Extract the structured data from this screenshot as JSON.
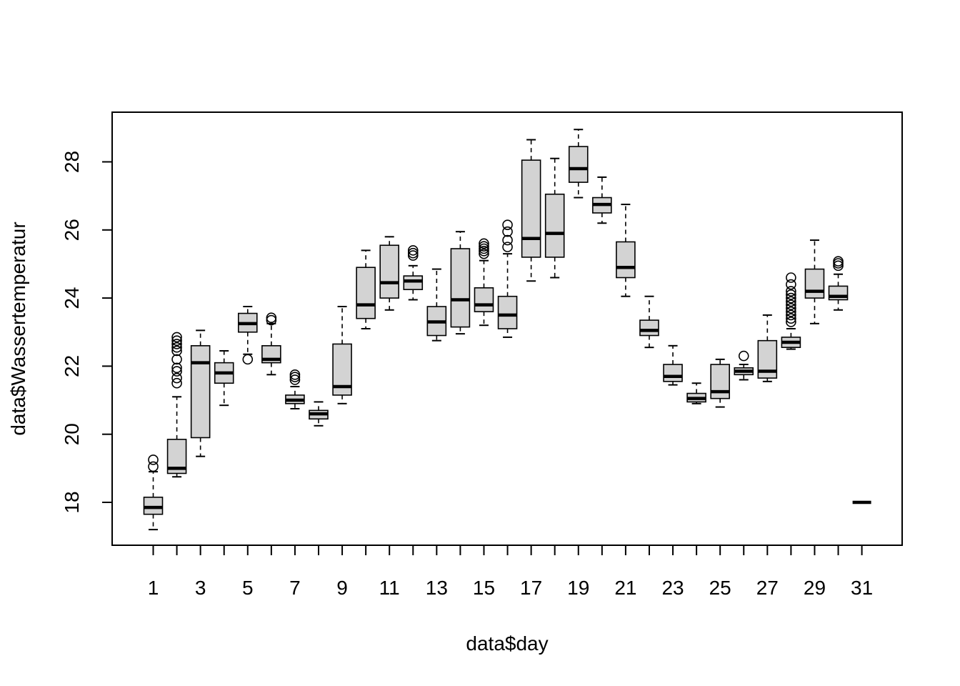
{
  "chart_data": {
    "type": "boxplot",
    "title": "",
    "xlabel": "data$day",
    "ylabel": "data$Wassertemperatur",
    "ylim": [
      17.0,
      29.3
    ],
    "y_ticks": [
      18,
      20,
      22,
      24,
      26,
      28
    ],
    "x_tick_labels_shown": [
      1,
      3,
      5,
      7,
      9,
      11,
      13,
      15,
      17,
      19,
      21,
      23,
      25,
      27,
      29,
      31
    ],
    "box_fill": "#d3d3d3",
    "grid": false,
    "legend": "none",
    "boxes": [
      {
        "day": 1,
        "whisker_low": 17.2,
        "q1": 17.65,
        "median": 17.85,
        "q3": 18.15,
        "whisker_high": 18.9,
        "outliers": [
          19.05,
          19.25
        ]
      },
      {
        "day": 2,
        "whisker_low": 18.75,
        "q1": 18.85,
        "median": 19.0,
        "q3": 19.85,
        "whisker_high": 21.1,
        "outliers": [
          21.5,
          21.65,
          21.85,
          21.95,
          22.2,
          22.45,
          22.55,
          22.65,
          22.75,
          22.85
        ]
      },
      {
        "day": 3,
        "whisker_low": 19.35,
        "q1": 19.9,
        "median": 22.1,
        "q3": 22.6,
        "whisker_high": 23.05,
        "outliers": []
      },
      {
        "day": 4,
        "whisker_low": 20.85,
        "q1": 21.5,
        "median": 21.8,
        "q3": 22.1,
        "whisker_high": 22.45,
        "outliers": []
      },
      {
        "day": 5,
        "whisker_low": 22.35,
        "q1": 23.0,
        "median": 23.25,
        "q3": 23.55,
        "whisker_high": 23.75,
        "outliers": [
          22.2
        ]
      },
      {
        "day": 6,
        "whisker_low": 21.75,
        "q1": 22.1,
        "median": 22.2,
        "q3": 22.6,
        "whisker_high": 23.25,
        "outliers": [
          23.35,
          23.42
        ]
      },
      {
        "day": 7,
        "whisker_low": 20.75,
        "q1": 20.9,
        "median": 21.0,
        "q3": 21.15,
        "whisker_high": 21.4,
        "outliers": [
          21.6,
          21.68,
          21.75
        ]
      },
      {
        "day": 8,
        "whisker_low": 20.25,
        "q1": 20.45,
        "median": 20.6,
        "q3": 20.7,
        "whisker_high": 20.95,
        "outliers": []
      },
      {
        "day": 9,
        "whisker_low": 20.9,
        "q1": 21.15,
        "median": 21.4,
        "q3": 22.65,
        "whisker_high": 23.75,
        "outliers": []
      },
      {
        "day": 10,
        "whisker_low": 23.1,
        "q1": 23.4,
        "median": 23.8,
        "q3": 24.9,
        "whisker_high": 25.4,
        "outliers": []
      },
      {
        "day": 11,
        "whisker_low": 23.65,
        "q1": 24.0,
        "median": 24.45,
        "q3": 25.55,
        "whisker_high": 25.8,
        "outliers": []
      },
      {
        "day": 12,
        "whisker_low": 23.95,
        "q1": 24.25,
        "median": 24.5,
        "q3": 24.65,
        "whisker_high": 24.95,
        "outliers": [
          25.25,
          25.32,
          25.4
        ]
      },
      {
        "day": 13,
        "whisker_low": 22.75,
        "q1": 22.9,
        "median": 23.3,
        "q3": 23.75,
        "whisker_high": 24.85,
        "outliers": []
      },
      {
        "day": 14,
        "whisker_low": 22.95,
        "q1": 23.15,
        "median": 23.95,
        "q3": 25.45,
        "whisker_high": 25.95,
        "outliers": []
      },
      {
        "day": 15,
        "whisker_low": 23.2,
        "q1": 23.6,
        "median": 23.8,
        "q3": 24.3,
        "whisker_high": 25.1,
        "outliers": [
          25.3,
          25.38,
          25.45,
          25.52,
          25.6
        ]
      },
      {
        "day": 16,
        "whisker_low": 22.85,
        "q1": 23.1,
        "median": 23.5,
        "q3": 24.05,
        "whisker_high": 25.3,
        "outliers": [
          25.5,
          25.7,
          25.95,
          26.15
        ]
      },
      {
        "day": 17,
        "whisker_low": 24.5,
        "q1": 25.2,
        "median": 25.75,
        "q3": 28.05,
        "whisker_high": 28.65,
        "outliers": []
      },
      {
        "day": 18,
        "whisker_low": 24.6,
        "q1": 25.2,
        "median": 25.9,
        "q3": 27.05,
        "whisker_high": 28.1,
        "outliers": []
      },
      {
        "day": 19,
        "whisker_low": 26.95,
        "q1": 27.4,
        "median": 27.8,
        "q3": 28.45,
        "whisker_high": 28.95,
        "outliers": []
      },
      {
        "day": 20,
        "whisker_low": 26.2,
        "q1": 26.5,
        "median": 26.75,
        "q3": 26.95,
        "whisker_high": 27.55,
        "outliers": []
      },
      {
        "day": 21,
        "whisker_low": 24.05,
        "q1": 24.6,
        "median": 24.9,
        "q3": 25.65,
        "whisker_high": 26.75,
        "outliers": []
      },
      {
        "day": 22,
        "whisker_low": 22.55,
        "q1": 22.9,
        "median": 23.05,
        "q3": 23.35,
        "whisker_high": 24.05,
        "outliers": []
      },
      {
        "day": 23,
        "whisker_low": 21.45,
        "q1": 21.55,
        "median": 21.7,
        "q3": 22.05,
        "whisker_high": 22.6,
        "outliers": []
      },
      {
        "day": 24,
        "whisker_low": 20.9,
        "q1": 20.95,
        "median": 21.05,
        "q3": 21.2,
        "whisker_high": 21.5,
        "outliers": []
      },
      {
        "day": 25,
        "whisker_low": 20.8,
        "q1": 21.05,
        "median": 21.25,
        "q3": 22.05,
        "whisker_high": 22.2,
        "outliers": []
      },
      {
        "day": 26,
        "whisker_low": 21.6,
        "q1": 21.75,
        "median": 21.85,
        "q3": 21.95,
        "whisker_high": 22.05,
        "outliers": [
          22.3
        ]
      },
      {
        "day": 27,
        "whisker_low": 21.55,
        "q1": 21.65,
        "median": 21.85,
        "q3": 22.75,
        "whisker_high": 23.5,
        "outliers": []
      },
      {
        "day": 28,
        "whisker_low": 22.5,
        "q1": 22.55,
        "median": 22.7,
        "q3": 22.85,
        "whisker_high": 23.1,
        "outliers": [
          23.3,
          23.4,
          23.5,
          23.6,
          23.7,
          23.8,
          23.9,
          24.0,
          24.1,
          24.2,
          24.4,
          24.6
        ]
      },
      {
        "day": 29,
        "whisker_low": 23.25,
        "q1": 24.0,
        "median": 24.2,
        "q3": 24.85,
        "whisker_high": 25.7,
        "outliers": []
      },
      {
        "day": 30,
        "whisker_low": 23.65,
        "q1": 23.95,
        "median": 24.05,
        "q3": 24.35,
        "whisker_high": 24.7,
        "outliers": [
          24.95,
          25.02,
          25.08
        ]
      },
      {
        "day": 31,
        "whisker_low": 18.0,
        "q1": 18.0,
        "median": 18.0,
        "q3": 18.0,
        "whisker_high": 18.0,
        "outliers": []
      }
    ]
  }
}
